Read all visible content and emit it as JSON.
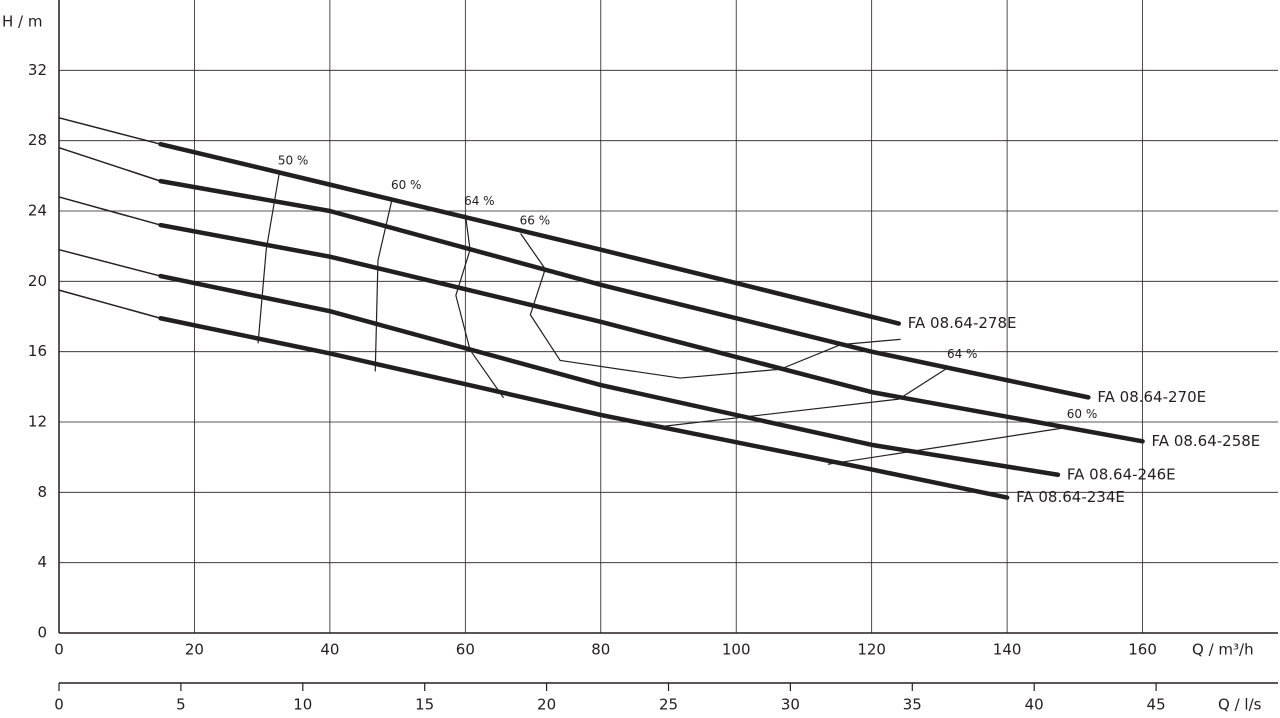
{
  "chart_data": {
    "type": "line",
    "y_label": "H / m",
    "x_label": "Q / m³/h",
    "x2_label": "Q / l/s",
    "xlim": [
      0,
      180
    ],
    "ylim": [
      0,
      36
    ],
    "x2lim": [
      0,
      50
    ],
    "xticks": [
      0,
      20,
      40,
      60,
      80,
      100,
      120,
      140,
      160
    ],
    "yticks": [
      0,
      4,
      8,
      12,
      16,
      20,
      24,
      28,
      32
    ],
    "x2ticks": [
      0,
      5,
      10,
      15,
      20,
      25,
      30,
      35,
      40,
      45
    ],
    "grid": true,
    "color": "#231f20",
    "series": [
      {
        "name": "FA 08.64-278E",
        "x": [
          0,
          15,
          40,
          80,
          100,
          124
        ],
        "values": [
          29.3,
          27.8,
          25.5,
          21.8,
          19.9,
          17.6
        ]
      },
      {
        "name": "FA 08.64-270E",
        "x": [
          0,
          15,
          40,
          80,
          120,
          152
        ],
        "values": [
          27.6,
          25.7,
          24.0,
          19.8,
          16.0,
          13.4
        ]
      },
      {
        "name": "FA 08.64-258E",
        "x": [
          0,
          15,
          40,
          80,
          120,
          160
        ],
        "values": [
          24.8,
          23.2,
          21.4,
          17.7,
          13.7,
          10.9
        ]
      },
      {
        "name": "FA 08.64-246E",
        "x": [
          0,
          15,
          40,
          80,
          120,
          147.5
        ],
        "values": [
          21.8,
          20.3,
          18.3,
          14.1,
          10.7,
          9.0
        ]
      },
      {
        "name": "FA 08.64-234E",
        "x": [
          0,
          15,
          40,
          80,
          120,
          140
        ],
        "values": [
          19.5,
          17.9,
          15.9,
          12.4,
          9.3,
          7.7
        ]
      }
    ],
    "efficiency_lines": [
      {
        "name": "50 %",
        "x": [
          32.5,
          30.6,
          29.4
        ],
        "values": [
          26.1,
          21.8,
          16.5
        ]
      },
      {
        "name": "60 %",
        "x": [
          49.2,
          47.1,
          46.7
        ],
        "values": [
          24.7,
          21.2,
          14.9
        ]
      },
      {
        "name": "64 %",
        "x": [
          60,
          60.7,
          58.6,
          60.7,
          65.6
        ],
        "values": [
          23.8,
          21.8,
          19.2,
          16.1,
          13.4
        ]
      },
      {
        "name": "66 %",
        "x": [
          68.2,
          71.8,
          69.6,
          74,
          91.7,
          106.5,
          115.4,
          124.2
        ],
        "values": [
          22.7,
          20.7,
          18.1,
          15.5,
          14.5,
          15.0,
          16.4,
          16.7
        ]
      },
      {
        "name": "64 %",
        "x": [
          88,
          124,
          131.3
        ],
        "values": [
          11.7,
          13.3,
          15.1
        ]
      },
      {
        "name": "60 %",
        "x": [
          113.6,
          149
        ],
        "values": [
          9.6,
          11.7
        ]
      }
    ]
  }
}
